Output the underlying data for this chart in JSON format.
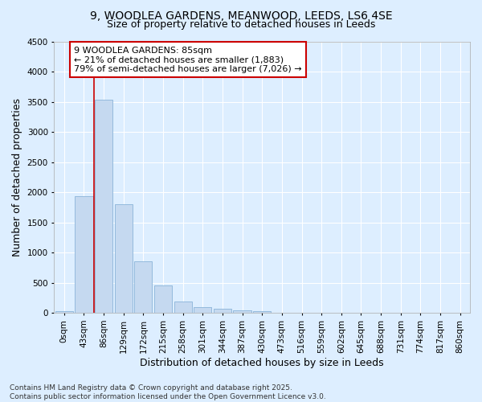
{
  "title_line1": "9, WOODLEA GARDENS, MEANWOOD, LEEDS, LS6 4SE",
  "title_line2": "Size of property relative to detached houses in Leeds",
  "xlabel": "Distribution of detached houses by size in Leeds",
  "ylabel": "Number of detached properties",
  "categories": [
    "0sqm",
    "43sqm",
    "86sqm",
    "129sqm",
    "172sqm",
    "215sqm",
    "258sqm",
    "301sqm",
    "344sqm",
    "387sqm",
    "430sqm",
    "473sqm",
    "516sqm",
    "559sqm",
    "602sqm",
    "645sqm",
    "688sqm",
    "731sqm",
    "774sqm",
    "817sqm",
    "860sqm"
  ],
  "values": [
    30,
    1940,
    3530,
    1800,
    850,
    450,
    185,
    100,
    70,
    45,
    30,
    0,
    0,
    0,
    0,
    0,
    0,
    0,
    0,
    0,
    0
  ],
  "bar_color": "#c5d9f0",
  "bar_edge_color": "#8ab4d9",
  "vline_x_index": 2,
  "vline_color": "#cc0000",
  "annotation_text": "9 WOODLEA GARDENS: 85sqm\n← 21% of detached houses are smaller (1,883)\n79% of semi-detached houses are larger (7,026) →",
  "annotation_box_facecolor": "#ffffff",
  "annotation_box_edgecolor": "#cc0000",
  "ylim": [
    0,
    4500
  ],
  "yticks": [
    0,
    500,
    1000,
    1500,
    2000,
    2500,
    3000,
    3500,
    4000,
    4500
  ],
  "bg_color": "#ddeeff",
  "plot_bg_color": "#ddeeff",
  "grid_color": "#ffffff",
  "footer_line1": "Contains HM Land Registry data © Crown copyright and database right 2025.",
  "footer_line2": "Contains public sector information licensed under the Open Government Licence v3.0.",
  "title_fontsize": 10,
  "subtitle_fontsize": 9,
  "axis_label_fontsize": 9,
  "tick_fontsize": 7.5,
  "annotation_fontsize": 8,
  "footer_fontsize": 6.5
}
